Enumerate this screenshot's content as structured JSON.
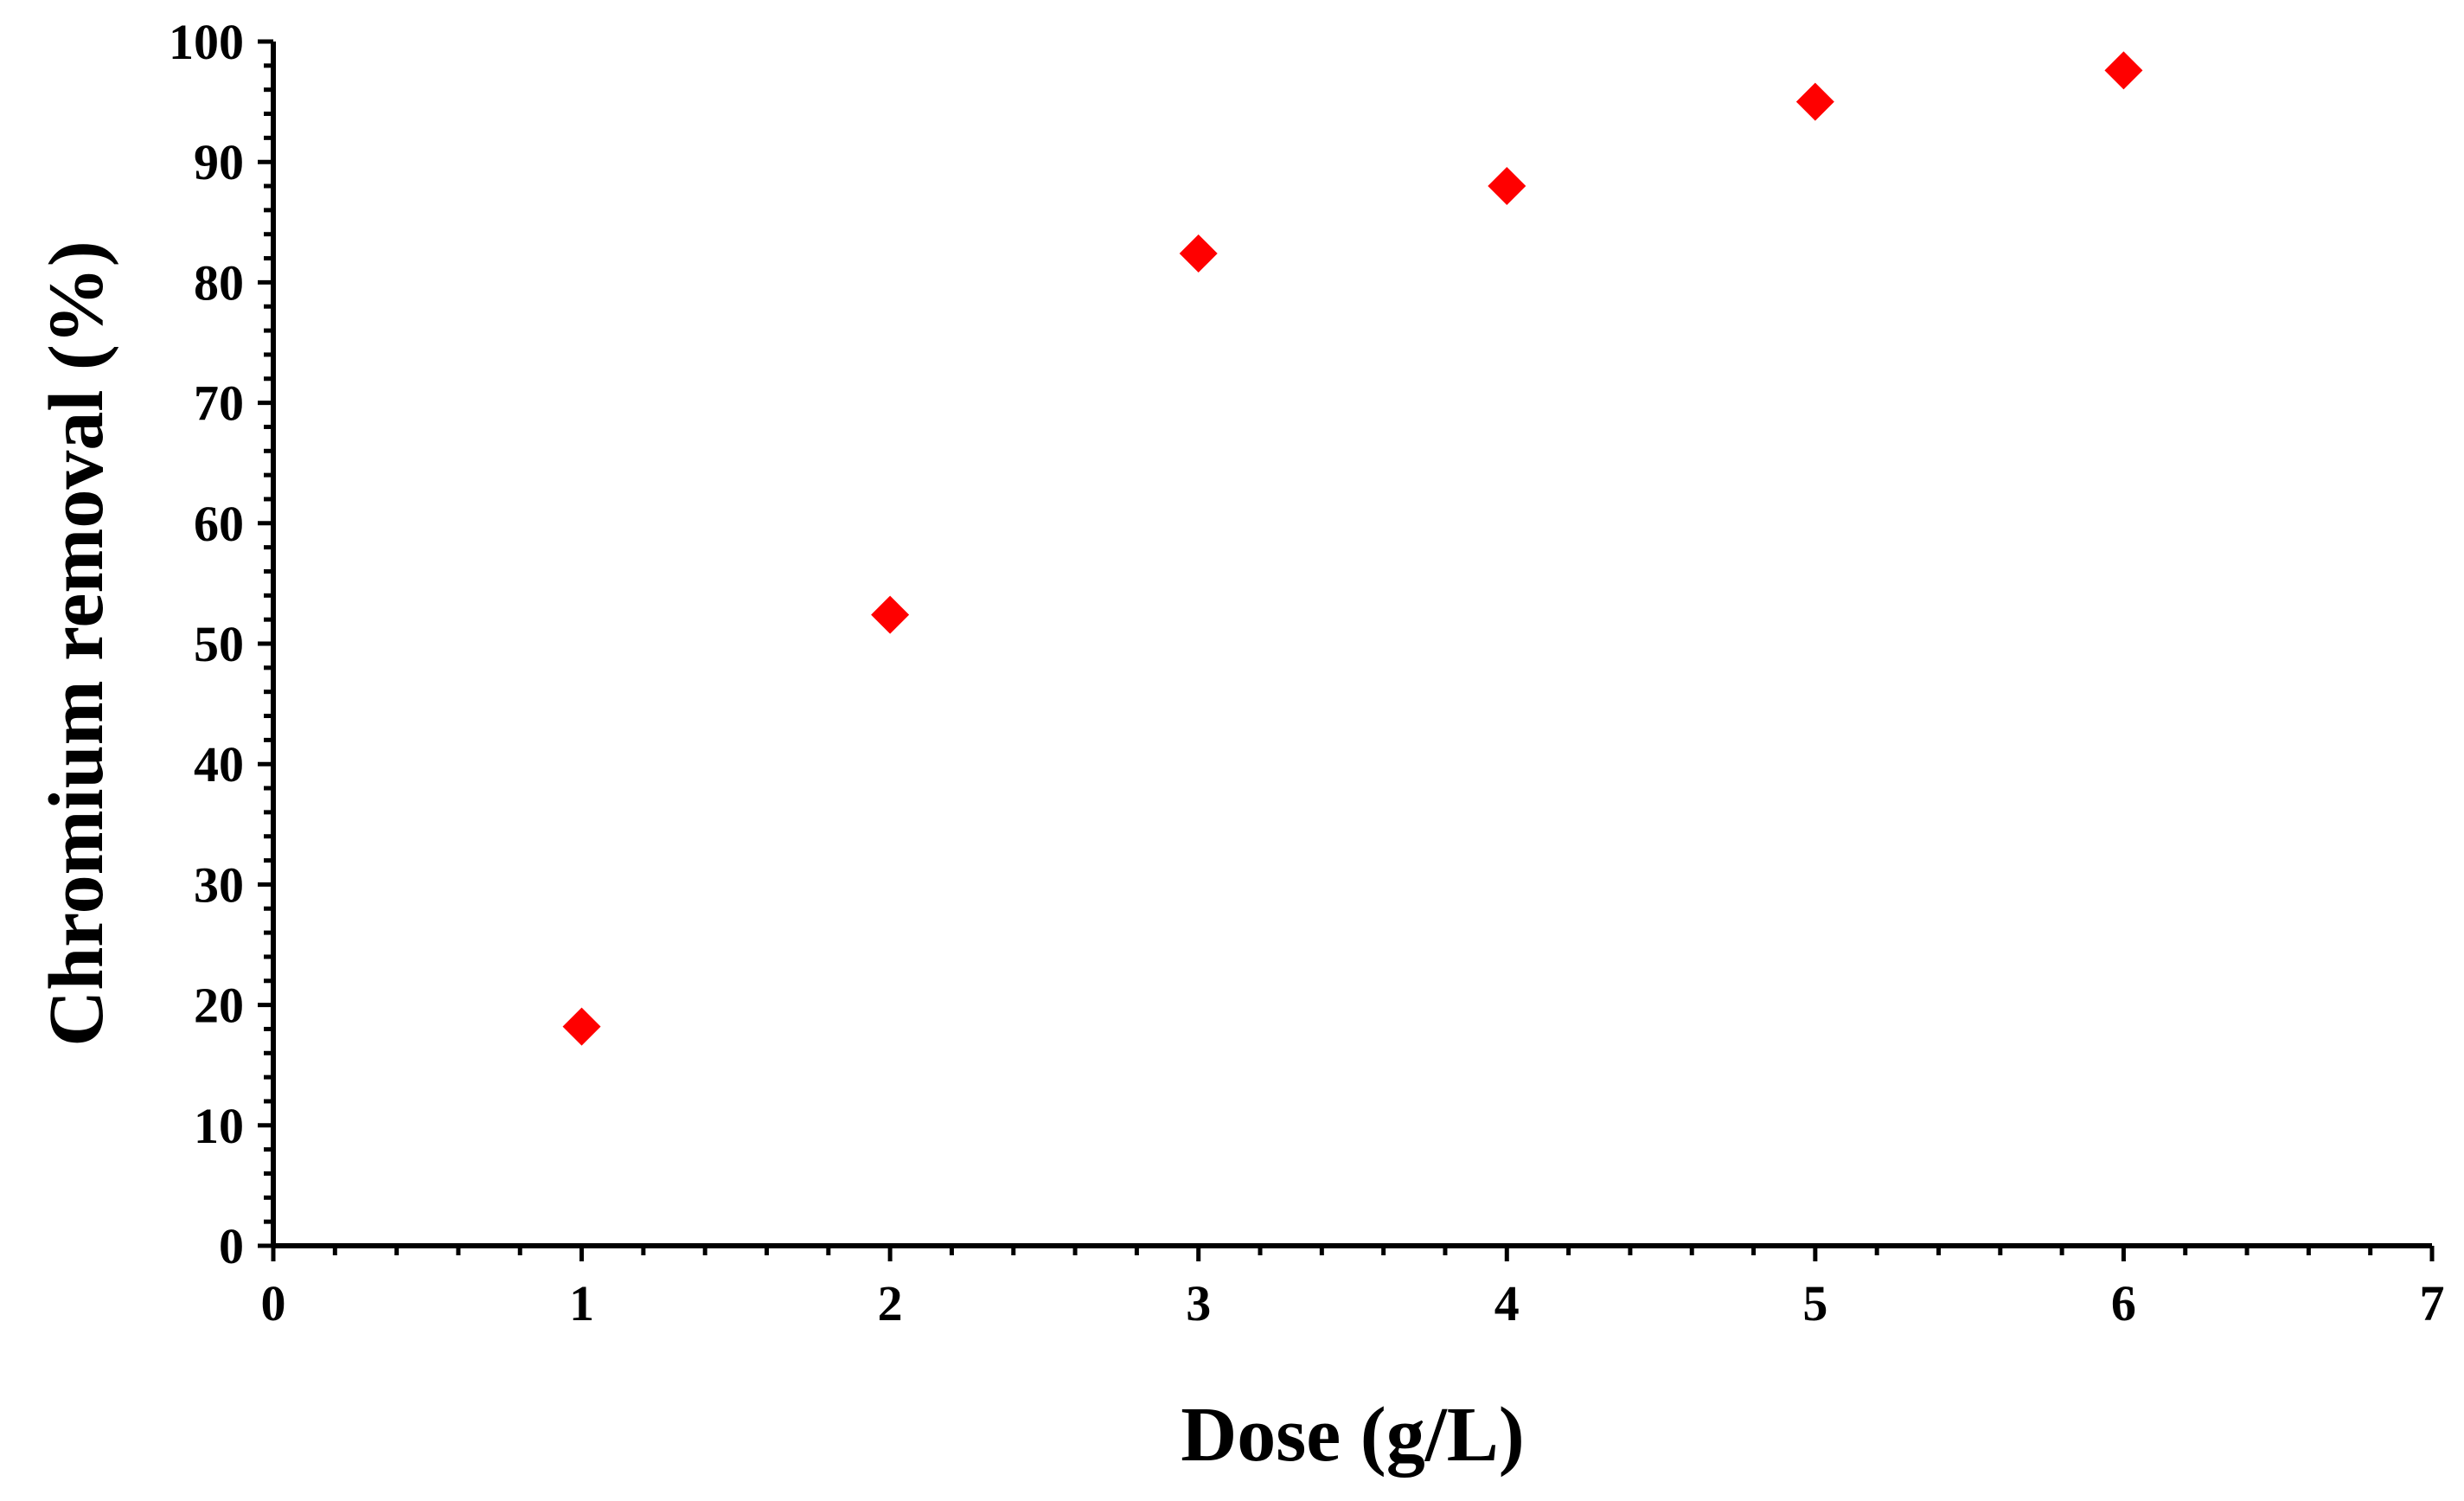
{
  "chart_data": {
    "type": "scatter",
    "title": "",
    "xlabel": "Dose (g/L)",
    "ylabel": "Chromium removal (%)",
    "xlim": [
      0,
      7
    ],
    "ylim": [
      0,
      100
    ],
    "x_ticks": [
      "0",
      "1",
      "2",
      "3",
      "4",
      "5",
      "6",
      "7"
    ],
    "y_ticks": [
      "0",
      "10",
      "20",
      "30",
      "40",
      "50",
      "60",
      "70",
      "80",
      "90",
      "100"
    ],
    "x_minor_per_major": 5,
    "y_minor_per_major": 5,
    "grid": false,
    "marker": "diamond",
    "marker_color": "#ff0000",
    "series": [
      {
        "x": [
          1,
          2,
          3,
          4,
          5,
          6
        ],
        "y": [
          18.2,
          52.4,
          82.4,
          88.0,
          95.0,
          97.6
        ]
      }
    ]
  }
}
